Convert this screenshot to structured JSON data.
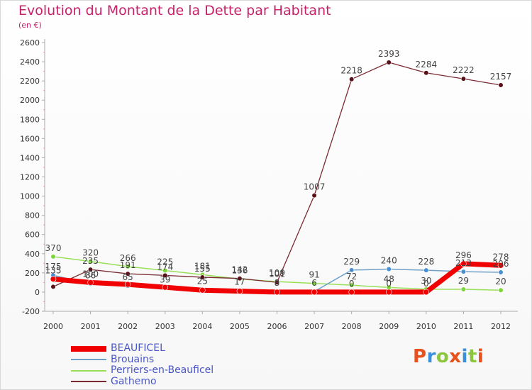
{
  "title": "Evolution du Montant de la Dette par Habitant",
  "unit": "(en €)",
  "logo": {
    "letters": [
      "P",
      "r",
      "o",
      "x",
      "i",
      "t",
      "i"
    ],
    "colors": [
      "#e8501e",
      "#3b8fd8",
      "#8cc63f",
      "#e8501e",
      "#3b8fd8",
      "#8cc63f",
      "#e8501e"
    ]
  },
  "chart_data": {
    "type": "line",
    "x": [
      2000,
      2001,
      2002,
      2003,
      2004,
      2005,
      2006,
      2007,
      2008,
      2009,
      2010,
      2011,
      2012
    ],
    "ylim": [
      -200,
      2600
    ],
    "yticks": [
      -200,
      0,
      200,
      400,
      600,
      800,
      1000,
      1200,
      1400,
      1600,
      1800,
      2000,
      2200,
      2400,
      2600
    ],
    "grid": false,
    "legend_position": "bottom-left",
    "series": [
      {
        "name": "Perriers-en-Beauficel",
        "color": "#99e05a",
        "values": [
          370,
          320,
          266,
          225,
          181,
          136,
          109,
          91,
          72,
          48,
          30,
          29,
          20
        ],
        "labels": [
          "370",
          "320",
          "266",
          "225",
          "181",
          "136",
          "109",
          "91",
          "72",
          "48",
          "30",
          "29",
          "20"
        ]
      },
      {
        "name": "Gathemo",
        "color": "#7a2a32",
        "values": [
          56,
          235,
          191,
          174,
          155,
          142,
          101,
          1007,
          2218,
          2393,
          2284,
          2222,
          2157
        ],
        "labels": [
          "",
          "235",
          "191",
          "174",
          "155",
          "142",
          "101",
          "1007",
          "2218",
          "2393",
          "2284",
          "2222",
          "2157"
        ]
      },
      {
        "name": "Brouains",
        "color": "#6fa0c8",
        "values": [
          175,
          86,
          65,
          39,
          25,
          17,
          8,
          6,
          229,
          240,
          228,
          213,
          206
        ],
        "labels": [
          "175",
          "86",
          "65",
          "39",
          "25",
          "17",
          "8",
          "6",
          "229",
          "240",
          "228",
          "213",
          "206"
        ]
      },
      {
        "name": "BEAUFICEL",
        "color": "#f00000",
        "values": [
          135,
          100,
          80,
          50,
          20,
          10,
          0,
          0,
          0,
          0,
          0,
          296,
          278
        ],
        "labels": [
          "135",
          "100",
          "",
          "",
          "",
          "",
          "",
          "",
          "0",
          "0",
          "0",
          "296",
          "278"
        ]
      }
    ]
  }
}
